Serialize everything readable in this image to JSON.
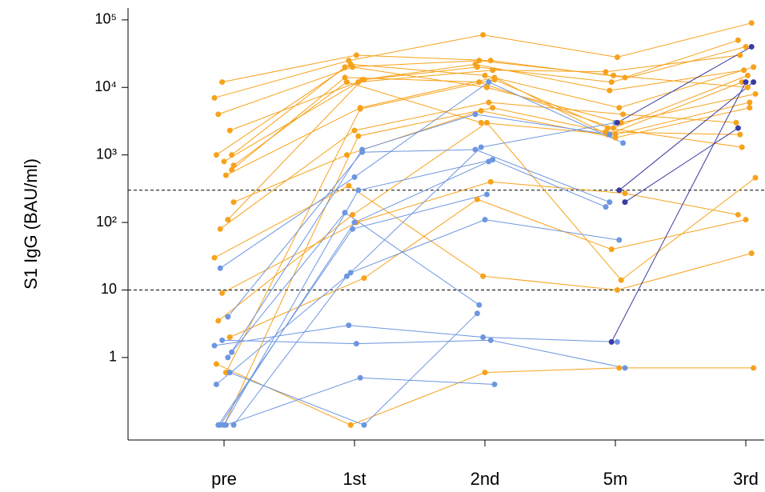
{
  "chart_data": {
    "type": "line",
    "log_y": true,
    "y_label": "S1 IgG (BAU/ml)",
    "categories": [
      "pre",
      "1st",
      "2nd",
      "5m",
      "3rd"
    ],
    "ylim": [
      0.06,
      150000
    ],
    "yticks": [
      1,
      10,
      {
        "value": 100,
        "label": "10²"
      },
      {
        "value": 1000,
        "label": "10³"
      },
      {
        "value": 10000,
        "label": "10⁴"
      },
      {
        "value": 100000,
        "label": "10⁵"
      }
    ],
    "hlines": [
      300,
      10
    ],
    "series": [
      {
        "color": "#f7a21b",
        "values": [
          7000,
          25000,
          60000,
          28000,
          90000
        ]
      },
      {
        "color": "#f7a21b",
        "values": [
          12000,
          30000,
          25000,
          14000,
          50000
        ]
      },
      {
        "color": "#f7a21b",
        "values": [
          2300,
          13000,
          20000,
          12000,
          40000
        ]
      },
      {
        "color": "#f7a21b",
        "values": [
          1000,
          22000,
          15000,
          5000,
          20000
        ]
      },
      {
        "color": "#f7a21b",
        "values": [
          800,
          12000,
          18000,
          17000,
          30000
        ]
      },
      {
        "color": "#f7a21b",
        "values": [
          600,
          14000,
          12000,
          2500,
          15000
        ]
      },
      {
        "color": "#f7a21b",
        "values": [
          4000,
          20000,
          10000,
          3000,
          8000
        ]
      },
      {
        "color": "#f7a21b",
        "values": [
          500,
          5000,
          14000,
          2000,
          12000
        ]
      },
      {
        "color": "#f7a21b",
        "values": [
          200,
          1000,
          4500,
          1800,
          5000
        ]
      },
      {
        "color": "#f7a21b",
        "values": [
          80,
          2300,
          6000,
          4000,
          3000
        ]
      },
      {
        "color": "#f7a21b",
        "values": [
          110,
          13000,
          22000,
          9000,
          18000
        ]
      },
      {
        "color": "#f7a21b",
        "values": [
          30,
          350,
          16,
          10,
          35
        ]
      },
      {
        "color": "#f7a21b",
        "values": [
          9,
          100,
          400,
          270,
          130
        ]
      },
      {
        "color": "#f7a21b",
        "values": [
          2,
          15,
          220,
          40,
          110
        ]
      },
      {
        "color": "#f7a21b",
        "values": [
          0.8,
          0.1,
          0.6,
          0.7,
          0.7
        ]
      },
      {
        "color": "#f7a21b",
        "values": [
          0.1,
          1900,
          5000,
          2200,
          2000
        ]
      },
      {
        "color": "#f7a21b",
        "values": [
          1000,
          20000,
          25000,
          15000,
          10000
        ]
      },
      {
        "color": "#f7a21b",
        "values": [
          3.5,
          130,
          3000,
          14,
          460
        ]
      },
      {
        "color": "#f7a21b",
        "values": [
          0.6,
          4800,
          13000,
          2500,
          1300
        ]
      },
      {
        "color": "#f7a21b",
        "values": [
          700,
          12000,
          3000,
          2000,
          6000
        ]
      },
      {
        "color": "#6d96e0",
        "values": [
          21,
          470,
          12000,
          1500,
          null
        ]
      },
      {
        "color": "#6d96e0",
        "values": [
          4,
          1100,
          1200,
          200,
          null
        ]
      },
      {
        "color": "#6d96e0",
        "values": [
          1.5,
          3,
          2,
          1.7,
          null
        ]
      },
      {
        "color": "#6d96e0",
        "values": [
          1.8,
          1.6,
          1.8,
          0.7,
          null
        ]
      },
      {
        "color": "#6d96e0",
        "values": [
          0.6,
          0.1,
          4.5,
          null,
          null
        ]
      },
      {
        "color": "#6d96e0",
        "values": [
          0.4,
          18,
          110,
          55,
          null
        ]
      },
      {
        "color": "#6d96e0",
        "values": [
          0.1,
          300,
          850,
          170,
          null
        ]
      },
      {
        "color": "#6d96e0",
        "values": [
          1.2,
          140,
          6,
          null,
          null
        ]
      },
      {
        "color": "#6d96e0",
        "values": [
          0.1,
          80,
          260,
          null,
          null
        ]
      },
      {
        "color": "#6d96e0",
        "values": [
          0.1,
          0.5,
          0.4,
          null,
          null
        ]
      },
      {
        "color": "#6d96e0",
        "values": [
          0.1,
          16,
          1300,
          3000,
          null
        ]
      },
      {
        "color": "#6d96e0",
        "values": [
          0.1,
          100,
          800,
          null,
          null
        ]
      },
      {
        "color": "#6d96e0",
        "values": [
          1,
          1200,
          4000,
          2000,
          null
        ]
      },
      {
        "color": "#3b3ba3",
        "values": [
          null,
          null,
          null,
          3000,
          40000
        ]
      },
      {
        "color": "#3b3ba3",
        "values": [
          null,
          null,
          null,
          200,
          2500
        ]
      },
      {
        "color": "#3b3ba3",
        "values": [
          null,
          null,
          null,
          1.7,
          12000
        ]
      },
      {
        "color": "#3b3ba3",
        "values": [
          null,
          null,
          null,
          300,
          12000
        ]
      }
    ]
  }
}
